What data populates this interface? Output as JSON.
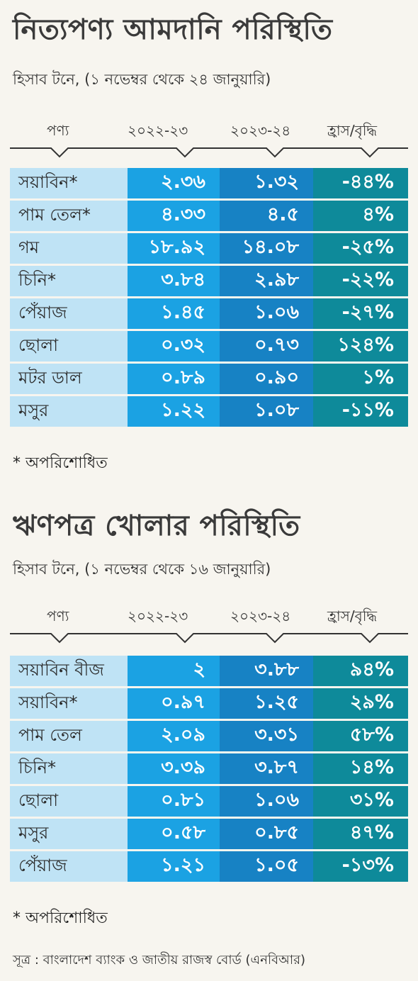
{
  "chart_data": [
    {
      "type": "table",
      "title": "নিত্যপণ্য আমদানি পরিস্থিতি",
      "subtitle": "হিসাব টনে, (১ নভেম্বর থেকে ২৪ জানুয়ারি)",
      "columns": [
        "পণ্য",
        "২০২২-২৩",
        "২০২৩-২৪",
        "হ্রাস/বৃদ্ধি"
      ],
      "rows": [
        [
          "সয়াবিন*",
          "২.৩৬",
          "১.৩২",
          "-৪৪%"
        ],
        [
          "পাম তেল*",
          "৪.৩৩",
          "৪.৫",
          "৪%"
        ],
        [
          "গম",
          "১৮.৯২",
          "১৪.০৮",
          "-২৫%"
        ],
        [
          "চিনি*",
          "৩.৮৪",
          "২.৯৮",
          "-২২%"
        ],
        [
          "পেঁয়াজ",
          "১.৪৫",
          "১.০৬",
          "-২৭%"
        ],
        [
          "ছোলা",
          "০.৩২",
          "০.৭৩",
          "১২৪%"
        ],
        [
          "মটর ডাল",
          "০.৮৯",
          "০.৯০",
          "১%"
        ],
        [
          "মসুর",
          "১.২২",
          "১.০৮",
          "-১১%"
        ]
      ],
      "note": "* অপরিশোধিত"
    },
    {
      "type": "table",
      "title": "ঋণপত্র খোলার পরিস্থিতি",
      "subtitle": "হিসাব টনে, (১ নভেম্বর থেকে ১৬ জানুয়ারি)",
      "columns": [
        "পণ্য",
        "২০২২-২৩",
        "২০২৩-২৪",
        "হ্রাস/বৃদ্ধি"
      ],
      "rows": [
        [
          "সয়াবিন বীজ",
          "২",
          "৩.৮৮",
          "৯৪%"
        ],
        [
          "সয়াবিন*",
          "০.৯৭",
          "১.২৫",
          "২৯%"
        ],
        [
          "পাম তেল",
          "২.০৯",
          "৩.৩১",
          "৫৮%"
        ],
        [
          "চিনি*",
          "৩.৩৯",
          "৩.৮৭",
          "১৪%"
        ],
        [
          "ছোলা",
          "০.৮১",
          "১.০৬",
          "৩১%"
        ],
        [
          "মসুর",
          "০.৫৮",
          "০.৮৫",
          "৪৭%"
        ],
        [
          "পেঁয়াজ",
          "১.২১",
          "১.০৫",
          "-১৩%"
        ]
      ],
      "note": "* অপরিশোধিত"
    }
  ],
  "source": "সূত্র : বাংলাদেশ ব্যাংক ও জাতীয় রাজস্ব বোর্ড (এনবিআর)",
  "colors": {
    "background": "#f7f5ef",
    "product_col": "#bfe3f5",
    "col_2022": "#1ba2e3",
    "col_2023": "#1782c4",
    "col_change": "#0e8a9a"
  }
}
